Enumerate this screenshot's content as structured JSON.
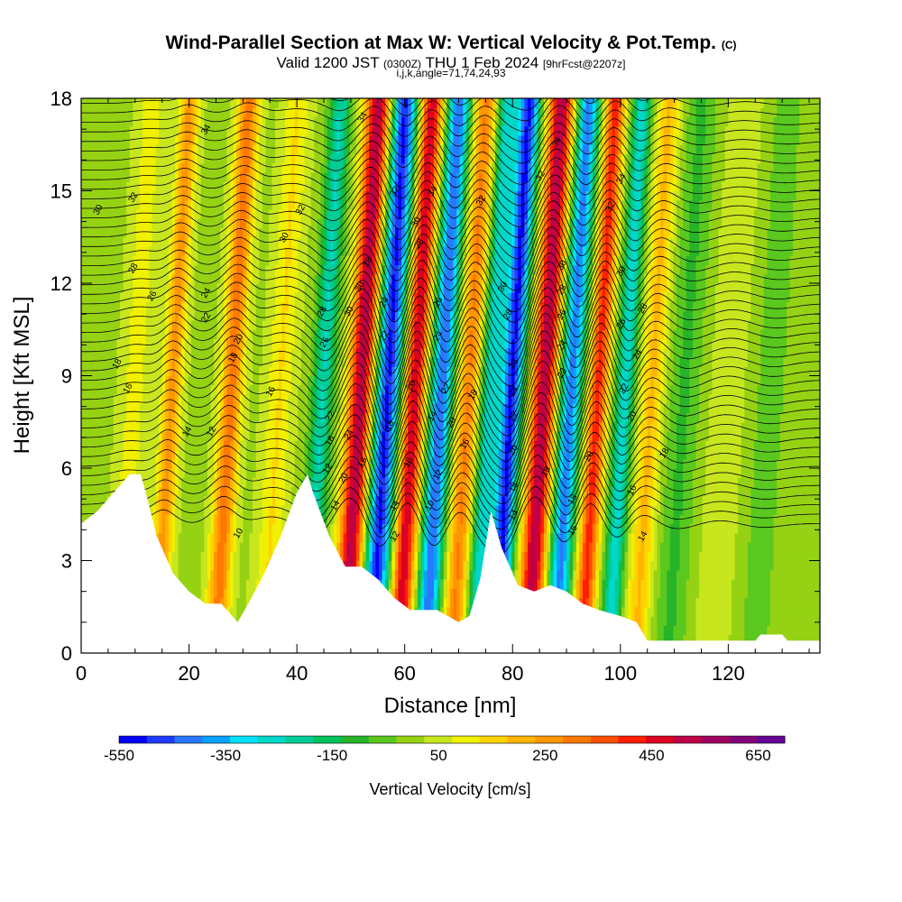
{
  "header": {
    "title": "Wind-Parallel Section at Max W: Vertical Velocity & Pot.Temp.",
    "copyright": "(C)",
    "valid_prefix": "Valid 1200 JST",
    "valid_utc": "(0300Z)",
    "valid_date": "THU 1 Feb 2024",
    "forecast": "[9hrFcst@2207z]",
    "indices": "i,j,k,angle=71,74,24,93"
  },
  "chart_data": {
    "type": "heatmap",
    "xlabel": "Distance [nm]",
    "ylabel": "Height [Kft MSL]",
    "xlim": [
      0,
      137
    ],
    "ylim": [
      0,
      18
    ],
    "x_ticks": [
      0,
      20,
      40,
      60,
      80,
      100,
      120
    ],
    "y_ticks": [
      0,
      3,
      6,
      9,
      12,
      15,
      18
    ],
    "colorbar": {
      "label": "Vertical Velocity [cm/s]",
      "range": [
        -550,
        700
      ],
      "tick_labels": [
        "-550",
        "-350",
        "-150",
        "50",
        "250",
        "450",
        "650"
      ],
      "colors": [
        "#0000ff",
        "#1e3cff",
        "#2a78ff",
        "#0aa0ff",
        "#00e0ff",
        "#00d7c8",
        "#00cd96",
        "#00c35a",
        "#28b428",
        "#5ac81e",
        "#96d214",
        "#c8e61e",
        "#f0f000",
        "#ffd200",
        "#ffb400",
        "#ff9600",
        "#ff7800",
        "#ff5000",
        "#ff1e00",
        "#dc0023",
        "#be0046",
        "#a0005f",
        "#820078",
        "#640096"
      ]
    },
    "vertical_velocity_bands": [
      {
        "x": 10,
        "w": 90,
        "width": 2.5
      },
      {
        "x": 17,
        "w": 240,
        "width": 1.8
      },
      {
        "x": 28,
        "w": 300,
        "width": 2.0
      },
      {
        "x": 37,
        "w": 120,
        "width": 2.5
      },
      {
        "x": 45,
        "w": -250,
        "width": 2.0
      },
      {
        "x": 52,
        "w": 520,
        "width": 2.3
      },
      {
        "x": 57,
        "w": -520,
        "width": 2.3
      },
      {
        "x": 62,
        "w": 480,
        "width": 2.0
      },
      {
        "x": 67,
        "w": -450,
        "width": 2.0
      },
      {
        "x": 72,
        "w": 280,
        "width": 2.0
      },
      {
        "x": 76,
        "w": -280,
        "width": 1.8
      },
      {
        "x": 80,
        "w": -520,
        "width": 2.0
      },
      {
        "x": 86,
        "w": 520,
        "width": 2.3
      },
      {
        "x": 91,
        "w": -420,
        "width": 2.0
      },
      {
        "x": 96,
        "w": 400,
        "width": 1.8
      },
      {
        "x": 101,
        "w": -280,
        "width": 1.8
      },
      {
        "x": 106,
        "w": 180,
        "width": 2.2
      },
      {
        "x": 112,
        "w": -100,
        "width": 3.0
      },
      {
        "x": 120,
        "w": 60,
        "width": 3.0
      },
      {
        "x": 128,
        "w": -70,
        "width": 3.0
      }
    ],
    "terrain": [
      {
        "x": 0,
        "h": 4.2
      },
      {
        "x": 3,
        "h": 4.6
      },
      {
        "x": 6,
        "h": 5.2
      },
      {
        "x": 9,
        "h": 5.8
      },
      {
        "x": 11,
        "h": 5.8
      },
      {
        "x": 12,
        "h": 5.2
      },
      {
        "x": 14,
        "h": 3.8
      },
      {
        "x": 17,
        "h": 2.6
      },
      {
        "x": 20,
        "h": 2.0
      },
      {
        "x": 23,
        "h": 1.6
      },
      {
        "x": 26,
        "h": 1.6
      },
      {
        "x": 29,
        "h": 1.0
      },
      {
        "x": 31,
        "h": 1.6
      },
      {
        "x": 34,
        "h": 2.6
      },
      {
        "x": 37,
        "h": 3.8
      },
      {
        "x": 40,
        "h": 5.2
      },
      {
        "x": 42,
        "h": 5.8
      },
      {
        "x": 43,
        "h": 5.2
      },
      {
        "x": 46,
        "h": 3.8
      },
      {
        "x": 49,
        "h": 2.8
      },
      {
        "x": 52,
        "h": 2.8
      },
      {
        "x": 55,
        "h": 2.4
      },
      {
        "x": 58,
        "h": 1.8
      },
      {
        "x": 61,
        "h": 1.4
      },
      {
        "x": 66,
        "h": 1.4
      },
      {
        "x": 70,
        "h": 1.0
      },
      {
        "x": 72,
        "h": 1.2
      },
      {
        "x": 74,
        "h": 2.4
      },
      {
        "x": 76,
        "h": 4.6
      },
      {
        "x": 78,
        "h": 3.4
      },
      {
        "x": 81,
        "h": 2.2
      },
      {
        "x": 84,
        "h": 2.0
      },
      {
        "x": 87,
        "h": 2.2
      },
      {
        "x": 90,
        "h": 2.0
      },
      {
        "x": 93,
        "h": 1.6
      },
      {
        "x": 96,
        "h": 1.4
      },
      {
        "x": 100,
        "h": 1.2
      },
      {
        "x": 103,
        "h": 1.0
      },
      {
        "x": 105,
        "h": 0.4
      },
      {
        "x": 125,
        "h": 0.4
      },
      {
        "x": 126,
        "h": 0.6
      },
      {
        "x": 130,
        "h": 0.6
      },
      {
        "x": 131,
        "h": 0.4
      },
      {
        "x": 137,
        "h": 0.4
      }
    ],
    "theta_levels": [
      10,
      12,
      14,
      16,
      18,
      20,
      22,
      24,
      26,
      28,
      30,
      32,
      34
    ],
    "contour_labels": [
      {
        "x": 23,
        "y": 17.0,
        "t": "34"
      },
      {
        "x": 9.5,
        "y": 14.8,
        "t": "32"
      },
      {
        "x": 3,
        "y": 14.4,
        "t": "30"
      },
      {
        "x": 9.5,
        "y": 12.5,
        "t": "28"
      },
      {
        "x": 13,
        "y": 11.6,
        "t": "26"
      },
      {
        "x": 23,
        "y": 11.7,
        "t": "24"
      },
      {
        "x": 23,
        "y": 10.9,
        "t": "22"
      },
      {
        "x": 29,
        "y": 10.2,
        "t": "20"
      },
      {
        "x": 28,
        "y": 9.6,
        "t": "18"
      },
      {
        "x": 6.5,
        "y": 9.4,
        "t": "18"
      },
      {
        "x": 8.5,
        "y": 8.6,
        "t": "16"
      },
      {
        "x": 35,
        "y": 8.5,
        "t": "16"
      },
      {
        "x": 19.5,
        "y": 7.2,
        "t": "14"
      },
      {
        "x": 24,
        "y": 7.2,
        "t": "12"
      },
      {
        "x": 29,
        "y": 3.9,
        "t": "10"
      },
      {
        "x": 40.5,
        "y": 14.4,
        "t": "32"
      },
      {
        "x": 37.5,
        "y": 13.5,
        "t": "30"
      },
      {
        "x": 52,
        "y": 17.4,
        "t": "34"
      },
      {
        "x": 58,
        "y": 15.0,
        "t": "32"
      },
      {
        "x": 65,
        "y": 15.0,
        "t": "34"
      },
      {
        "x": 74,
        "y": 14.7,
        "t": "32"
      },
      {
        "x": 62,
        "y": 14.0,
        "t": "30"
      },
      {
        "x": 62.5,
        "y": 13.3,
        "t": "28"
      },
      {
        "x": 53,
        "y": 12.7,
        "t": "28"
      },
      {
        "x": 51.5,
        "y": 11.9,
        "t": "30"
      },
      {
        "x": 44.5,
        "y": 11.1,
        "t": "28"
      },
      {
        "x": 49.5,
        "y": 11.1,
        "t": "30"
      },
      {
        "x": 45,
        "y": 10.1,
        "t": "26"
      },
      {
        "x": 56,
        "y": 11.4,
        "t": "24"
      },
      {
        "x": 66,
        "y": 11.4,
        "t": "26"
      },
      {
        "x": 56,
        "y": 10.3,
        "t": "22"
      },
      {
        "x": 66,
        "y": 10.3,
        "t": "24"
      },
      {
        "x": 61,
        "y": 8.7,
        "t": "20"
      },
      {
        "x": 67.5,
        "y": 8.6,
        "t": "22"
      },
      {
        "x": 72.5,
        "y": 8.4,
        "t": "18"
      },
      {
        "x": 46,
        "y": 7.7,
        "t": "22"
      },
      {
        "x": 65,
        "y": 7.7,
        "t": "14"
      },
      {
        "x": 68.5,
        "y": 7.5,
        "t": "20"
      },
      {
        "x": 46,
        "y": 6.9,
        "t": "16"
      },
      {
        "x": 49.5,
        "y": 7.1,
        "t": "24"
      },
      {
        "x": 57,
        "y": 7.4,
        "t": "18"
      },
      {
        "x": 71,
        "y": 6.8,
        "t": "16"
      },
      {
        "x": 52,
        "y": 6.2,
        "t": "16"
      },
      {
        "x": 60.5,
        "y": 6.2,
        "t": "16"
      },
      {
        "x": 45.5,
        "y": 6.0,
        "t": "12"
      },
      {
        "x": 48.5,
        "y": 5.7,
        "t": "20"
      },
      {
        "x": 66,
        "y": 5.8,
        "t": "12"
      },
      {
        "x": 47,
        "y": 4.8,
        "t": "14"
      },
      {
        "x": 58,
        "y": 4.8,
        "t": "14"
      },
      {
        "x": 64.5,
        "y": 4.8,
        "t": "10"
      },
      {
        "x": 58,
        "y": 3.8,
        "t": "12"
      },
      {
        "x": 88,
        "y": 16.6,
        "t": "34"
      },
      {
        "x": 85,
        "y": 15.5,
        "t": "32"
      },
      {
        "x": 100,
        "y": 15.4,
        "t": "34"
      },
      {
        "x": 98,
        "y": 14.5,
        "t": "32"
      },
      {
        "x": 78,
        "y": 11.9,
        "t": "30"
      },
      {
        "x": 89,
        "y": 12.6,
        "t": "30"
      },
      {
        "x": 100,
        "y": 12.4,
        "t": "30"
      },
      {
        "x": 79,
        "y": 11.0,
        "t": "28"
      },
      {
        "x": 89,
        "y": 11.8,
        "t": "28"
      },
      {
        "x": 104,
        "y": 11.2,
        "t": "28"
      },
      {
        "x": 89,
        "y": 11.0,
        "t": "26"
      },
      {
        "x": 100,
        "y": 10.7,
        "t": "26"
      },
      {
        "x": 80,
        "y": 9.4,
        "t": "26"
      },
      {
        "x": 89,
        "y": 10.0,
        "t": "24"
      },
      {
        "x": 103,
        "y": 9.7,
        "t": "24"
      },
      {
        "x": 80,
        "y": 8.5,
        "t": "24"
      },
      {
        "x": 89,
        "y": 9.1,
        "t": "22"
      },
      {
        "x": 100.5,
        "y": 8.6,
        "t": "22"
      },
      {
        "x": 80,
        "y": 7.7,
        "t": "22"
      },
      {
        "x": 102,
        "y": 7.7,
        "t": "20"
      },
      {
        "x": 80,
        "y": 6.6,
        "t": "20"
      },
      {
        "x": 86,
        "y": 5.9,
        "t": "18"
      },
      {
        "x": 94,
        "y": 6.4,
        "t": "20"
      },
      {
        "x": 108,
        "y": 6.5,
        "t": "18"
      },
      {
        "x": 80,
        "y": 5.4,
        "t": "18"
      },
      {
        "x": 91,
        "y": 5.0,
        "t": "18"
      },
      {
        "x": 102,
        "y": 5.3,
        "t": "16"
      },
      {
        "x": 80,
        "y": 4.5,
        "t": "14"
      },
      {
        "x": 91,
        "y": 4.0,
        "t": "16"
      },
      {
        "x": 104,
        "y": 3.8,
        "t": "14"
      }
    ]
  }
}
